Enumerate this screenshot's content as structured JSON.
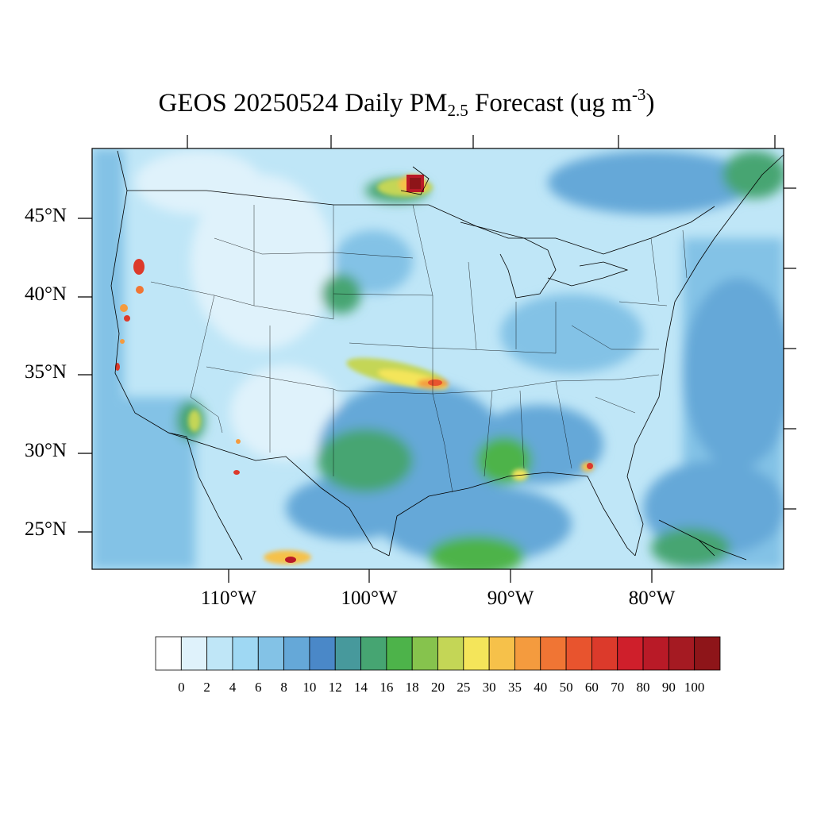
{
  "title": {
    "main": "GEOS 20250524 Daily PM",
    "sub": "2.5",
    "tail": " Forecast (ug m",
    "sup": "-3",
    "close": ")"
  },
  "map": {
    "lat_labels": [
      "45°N",
      "40°N",
      "35°N",
      "30°N",
      "25°N"
    ],
    "lon_labels": [
      "110°W",
      "100°W",
      "90°W",
      "80°W"
    ]
  },
  "legend": {
    "labels": [
      "0",
      "2",
      "4",
      "6",
      "8",
      "10",
      "12",
      "14",
      "16",
      "18",
      "20",
      "25",
      "30",
      "35",
      "40",
      "50",
      "60",
      "70",
      "80",
      "90",
      "100"
    ],
    "colors": [
      "#ffffff",
      "#dff2fb",
      "#bfe6f7",
      "#9fd8f3",
      "#83c2e6",
      "#65a8d8",
      "#4a88c8",
      "#47999c",
      "#46a572",
      "#4db34a",
      "#86c34d",
      "#c4d656",
      "#f4e55a",
      "#f6c14a",
      "#f49b3e",
      "#f07534",
      "#e8542e",
      "#dc3a2b",
      "#cf1f2b",
      "#b91a27",
      "#a51a22",
      "#8e1519"
    ]
  },
  "colors": {
    "ocean_low": "#83c2e6",
    "land_base": "#bfe6f7",
    "boundary": "#000000"
  }
}
